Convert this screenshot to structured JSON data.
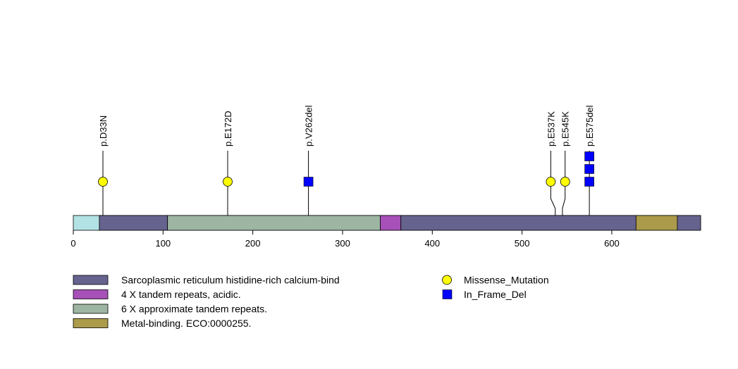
{
  "chart_data": {
    "type": "lollipop",
    "protein_length": 699,
    "x_ticks": [
      0,
      100,
      200,
      300,
      400,
      500,
      600
    ],
    "base_color": "#b3e2e5",
    "domains": [
      {
        "name": "Sarcoplasmic reticulum histidine-rich calcium-bind",
        "start": 29,
        "end": 105,
        "color": "#66638f"
      },
      {
        "name": "6 X approximate tandem repeats.",
        "start": 105,
        "end": 342,
        "color": "#9db5a2"
      },
      {
        "name": "4 X tandem repeats, acidic.",
        "start": 342,
        "end": 365,
        "color": "#a650b8"
      },
      {
        "name": "Sarcoplasmic reticulum histidine-rich calcium-bind",
        "start": 365,
        "end": 627,
        "color": "#66638f"
      },
      {
        "name": "Metal-binding. ECO:0000255.",
        "start": 627,
        "end": 673,
        "color": "#ab9b4a"
      },
      {
        "name": "Sarcoplasmic reticulum histidine-rich calcium-bind",
        "start": 673,
        "end": 699,
        "color": "#66638f"
      }
    ],
    "mutations": [
      {
        "label": "p.D33N",
        "position": 33,
        "count": 1,
        "type": "Missense_Mutation",
        "display_position": 33
      },
      {
        "label": "p.E172D",
        "position": 172,
        "count": 1,
        "type": "Missense_Mutation",
        "display_position": 172
      },
      {
        "label": "p.V262del",
        "position": 262,
        "count": 1,
        "type": "In_Frame_Del",
        "display_position": 262
      },
      {
        "label": "p.E537K",
        "position": 537,
        "count": 1,
        "type": "Missense_Mutation",
        "display_position": 532
      },
      {
        "label": "p.E545K",
        "position": 545,
        "count": 1,
        "type": "Missense_Mutation",
        "display_position": 548
      },
      {
        "label": "p.E575del",
        "position": 575,
        "count": 3,
        "type": "In_Frame_Del",
        "display_position": 575
      }
    ],
    "legend_domains": [
      {
        "label": "Sarcoplasmic reticulum histidine-rich calcium-bind",
        "color": "#66638f"
      },
      {
        "label": "4 X tandem repeats, acidic.",
        "color": "#a650b8"
      },
      {
        "label": "6 X approximate tandem repeats.",
        "color": "#9db5a2"
      },
      {
        "label": "Metal-binding. ECO:0000255.",
        "color": "#ab9b4a"
      }
    ],
    "legend_mutations": [
      {
        "label": "Missense_Mutation",
        "shape": "circle",
        "color": "#ffff00"
      },
      {
        "label": "In_Frame_Del",
        "shape": "square",
        "color": "#0000ff"
      }
    ]
  }
}
